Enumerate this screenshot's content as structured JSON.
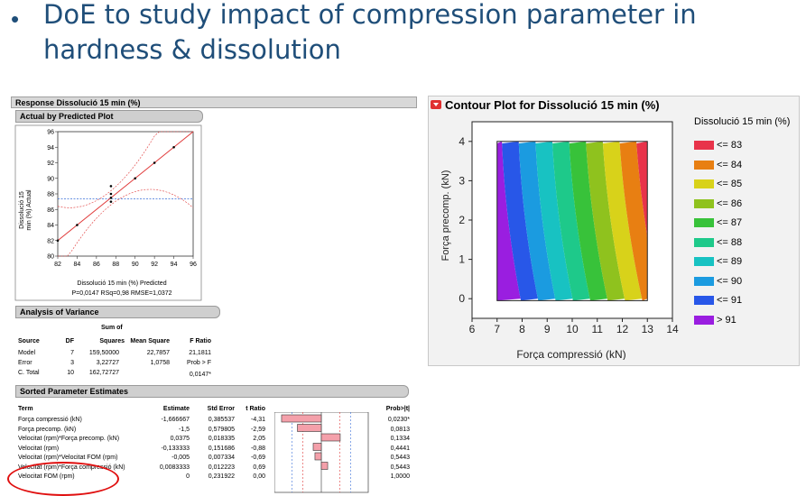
{
  "slide": {
    "bullet": "•",
    "title_line1": "DoE to study impact of compression parameter in",
    "title_line2": "hardness & dissolution"
  },
  "left": {
    "response_header": "Response Dissolució 15 min (%)",
    "actual_by_pred": {
      "header": "Actual by Predicted Plot",
      "ylabel_line1": "Dissolució 15",
      "ylabel_line2": "min (%) Actual",
      "xlabel": "Dissolució 15 min (%) Predicted",
      "stats": "P=0,0147 RSq=0,98 RMSE=1,0372",
      "xticks": [
        "82",
        "84",
        "86",
        "88",
        "90",
        "92",
        "94",
        "96"
      ],
      "yticks": [
        "96",
        "94",
        "92",
        "90",
        "88",
        "86",
        "84",
        "82",
        "80"
      ]
    },
    "anova": {
      "header": "Analysis of Variance",
      "sum_of": "Sum of",
      "col_source": "Source",
      "col_df": "DF",
      "col_squares": "Squares",
      "col_meansq": "Mean Square",
      "col_fratio": "F Ratio",
      "rows": [
        {
          "source": "Model",
          "df": "7",
          "ss": "159,50000",
          "ms": "22,7857",
          "f": "21,1811"
        },
        {
          "source": "Error",
          "df": "3",
          "ss": "3,22727",
          "ms": "1,0758",
          "f": "Prob > F"
        },
        {
          "source": "C. Total",
          "df": "10",
          "ss": "162,72727",
          "ms": "",
          "f": "0,0147*"
        }
      ]
    },
    "params": {
      "header": "Sorted Parameter Estimates",
      "col_term": "Term",
      "col_estimate": "Estimate",
      "col_stderr": "Std Error",
      "col_tratio": "t Ratio",
      "col_prob": "Prob>|t|",
      "rows": [
        {
          "term": "Força compressió (kN)",
          "est": "-1,666667",
          "se": "0,385537",
          "t": "-4,31",
          "p": "0,0230*",
          "tval": -4.31
        },
        {
          "term": "Força precomp. (kN)",
          "est": "-1,5",
          "se": "0,579805",
          "t": "-2,59",
          "p": "0,0813",
          "tval": -2.59
        },
        {
          "term": "Velocitat (rpm)*Força precomp. (kN)",
          "est": "0,0375",
          "se": "0,018335",
          "t": "2,05",
          "p": "0,1334",
          "tval": 2.05
        },
        {
          "term": "Velocitat (rpm)",
          "est": "-0,133333",
          "se": "0,151686",
          "t": "-0,88",
          "p": "0,4441",
          "tval": -0.88
        },
        {
          "term": "Velocitat (rpm)*Velocitat FOM (rpm)",
          "est": "-0,005",
          "se": "0,007334",
          "t": "-0,69",
          "p": "0,5443",
          "tval": -0.69
        },
        {
          "term": "Velocitat (rpm)*Força compressió (kN)",
          "est": "0,0083333",
          "se": "0,012223",
          "t": "0,69",
          "p": "0,5443",
          "tval": 0.69
        },
        {
          "term": "Velocitat FOM (rpm)",
          "est": "0",
          "se": "0,231922",
          "t": "0,00",
          "p": "1,0000",
          "tval": 0.0
        }
      ]
    }
  },
  "right": {
    "title": "Contour Plot for Dissolució 15 min (%)",
    "legend_title": "Dissolució 15 min (%)",
    "legend": [
      {
        "label": "<= 83",
        "color": "#e8334a"
      },
      {
        "label": "<= 84",
        "color": "#e87f12"
      },
      {
        "label": "<= 85",
        "color": "#d8d21a"
      },
      {
        "label": "<= 86",
        "color": "#8fc21e"
      },
      {
        "label": "<= 87",
        "color": "#38c23a"
      },
      {
        "label": "<= 88",
        "color": "#1ec98a"
      },
      {
        "label": "<= 89",
        "color": "#18c2c2"
      },
      {
        "label": "<= 90",
        "color": "#1b9be0"
      },
      {
        "label": "<= 91",
        "color": "#2857e8"
      },
      {
        "label": "> 91",
        "color": "#9a1ee0"
      }
    ],
    "xlabel": "Força compressió (kN)",
    "ylabel": "Força precomp. (kN)",
    "xticks": [
      "6",
      "7",
      "8",
      "9",
      "10",
      "11",
      "12",
      "13",
      "14"
    ],
    "yticks": [
      "4",
      "3",
      "2",
      "1",
      "0"
    ]
  },
  "chart_data": [
    {
      "type": "scatter",
      "title": "Actual by Predicted Plot",
      "xlabel": "Dissolució 15 min (%) Predicted",
      "ylabel": "Dissolució 15 min (%) Actual",
      "xlim": [
        82,
        96
      ],
      "ylim": [
        80,
        96
      ],
      "x": [
        82.0,
        84.0,
        87.5,
        87.5,
        87.5,
        87.5,
        90.0,
        92.0,
        94.0
      ],
      "y": [
        82.0,
        84.0,
        89.0,
        88.0,
        87.0,
        87.5,
        90.0,
        92.0,
        94.0
      ]
    },
    {
      "type": "bar",
      "title": "Sorted Parameter Estimates",
      "categories": [
        "Força compressió (kN)",
        "Força precomp. (kN)",
        "Velocitat (rpm)*Força precomp. (kN)",
        "Velocitat (rpm)",
        "Velocitat (rpm)*Velocitat FOM (rpm)",
        "Velocitat (rpm)*Força compressió (kN)",
        "Velocitat FOM (rpm)"
      ],
      "values": [
        -4.31,
        -2.59,
        2.05,
        -0.88,
        -0.69,
        0.69,
        0.0
      ],
      "xlabel": "t Ratio"
    },
    {
      "type": "heatmap",
      "title": "Contour Plot for Dissolució 15 min (%)",
      "xlabel": "Força compressió (kN)",
      "ylabel": "Força precomp. (kN)",
      "xlim": [
        6,
        14
      ],
      "ylim": [
        -0.5,
        4.5
      ],
      "levels": [
        "<= 83",
        "<= 84",
        "<= 85",
        "<= 86",
        "<= 87",
        "<= 88",
        "<= 89",
        "<= 90",
        "<= 91",
        "> 91"
      ]
    }
  ]
}
